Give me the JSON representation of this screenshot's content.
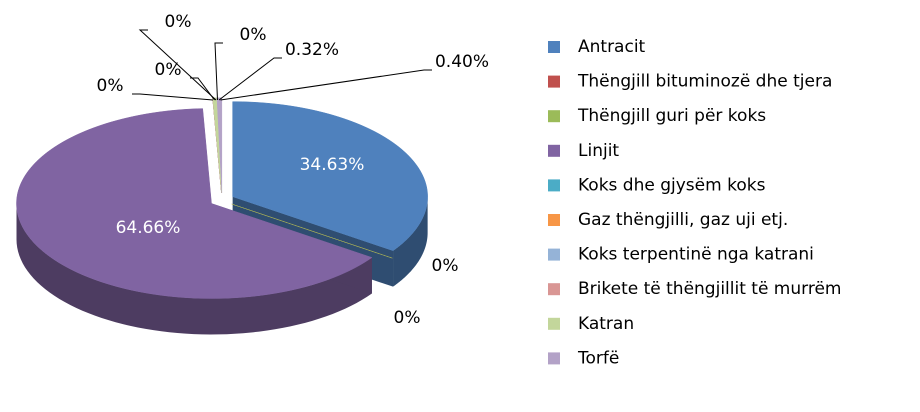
{
  "chart_data": {
    "type": "pie",
    "categories": [
      "Antracit",
      "Thëngjill bituminozë dhe tjera",
      "Thëngjill guri për koks",
      "Linjit",
      "Koks dhe gjysëm koks",
      "Gaz thëngjilli, gaz uji etj.",
      "Koks terpentinë nga katrani",
      "Brikete të thëngjillit të murrëm",
      "Katran",
      "Torfë"
    ],
    "values": [
      34.63,
      0,
      0,
      64.66,
      0,
      0,
      0,
      0,
      0.32,
      0.4
    ],
    "value_labels": [
      "34.63%",
      "0%",
      "0%",
      "64.66%",
      "0%",
      "0%",
      "0%",
      "0%",
      "0.32%",
      "0.40%"
    ],
    "colors": [
      "#4f81bd",
      "#c0504d",
      "#9bbb59",
      "#8064a2",
      "#4bacc6",
      "#f79646",
      "#95b3d7",
      "#d99694",
      "#c3d69b",
      "#b3a2c7"
    ],
    "legend": "right"
  }
}
